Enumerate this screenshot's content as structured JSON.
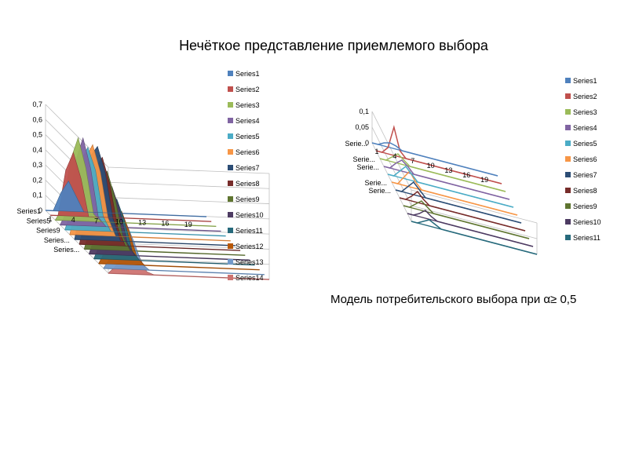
{
  "page": {
    "title": "Нечёткое  представление  приемлемого  выбора",
    "caption": "Модель потребительского выбора при α≥ 0,5"
  },
  "colors": [
    "#4F81BD",
    "#C0504D",
    "#9BBB59",
    "#8064A2",
    "#4BACC6",
    "#F79646",
    "#2C4D75",
    "#772C2A",
    "#5F7530",
    "#4D3B62",
    "#276A7C",
    "#B65708",
    "#729ACA",
    "#CD7371"
  ],
  "chart_data": [
    {
      "type": "area",
      "title": "",
      "x": [
        1,
        2,
        3,
        4,
        5,
        6,
        7,
        8,
        9,
        10,
        11,
        12,
        13,
        14,
        15,
        16,
        17,
        18,
        19,
        20,
        21,
        22
      ],
      "x_tick_labels": [
        "1",
        "4",
        "7",
        "10",
        "13",
        "16",
        "19"
      ],
      "z_labels": [
        "Series1",
        "Series5",
        "Series9",
        "Series...",
        "Series..."
      ],
      "ylim": [
        0,
        0.7
      ],
      "y_ticks": [
        "0",
        "0,1",
        "0,2",
        "0,3",
        "0,4",
        "0,5",
        "0,6",
        "0,7"
      ],
      "legend_position": "right",
      "series": [
        {
          "name": "Series1",
          "values": [
            0,
            0,
            0.12,
            0.2,
            0.1,
            0,
            0,
            0,
            0,
            0,
            0,
            0,
            0,
            0,
            0,
            0,
            0,
            0,
            0,
            0,
            0,
            0
          ]
        },
        {
          "name": "Series2",
          "values": [
            0,
            0,
            0.3,
            0.42,
            0.25,
            0,
            0,
            0,
            0,
            0,
            0,
            0,
            0,
            0,
            0,
            0,
            0,
            0,
            0,
            0,
            0,
            0
          ]
        },
        {
          "name": "Series3",
          "values": [
            0,
            0.08,
            0.4,
            0.55,
            0.35,
            0.05,
            0,
            0,
            0,
            0,
            0,
            0,
            0,
            0,
            0,
            0,
            0,
            0,
            0,
            0,
            0,
            0
          ]
        },
        {
          "name": "Series4",
          "values": [
            0,
            0.1,
            0.42,
            0.58,
            0.38,
            0.06,
            0,
            0,
            0,
            0,
            0,
            0,
            0,
            0,
            0,
            0,
            0,
            0,
            0,
            0,
            0,
            0
          ]
        },
        {
          "name": "Series5",
          "values": [
            0,
            0.15,
            0.45,
            0.55,
            0.4,
            0.1,
            0,
            0,
            0,
            0,
            0,
            0,
            0,
            0,
            0,
            0,
            0,
            0,
            0,
            0,
            0,
            0
          ]
        },
        {
          "name": "Series6",
          "values": [
            0,
            0.2,
            0.5,
            0.6,
            0.42,
            0.12,
            0,
            0,
            0,
            0,
            0,
            0,
            0,
            0,
            0,
            0,
            0,
            0,
            0,
            0,
            0,
            0
          ]
        },
        {
          "name": "Series7",
          "values": [
            0,
            0.25,
            0.55,
            0.62,
            0.45,
            0.15,
            0,
            0,
            0,
            0,
            0,
            0,
            0,
            0,
            0,
            0,
            0,
            0,
            0,
            0,
            0,
            0
          ]
        },
        {
          "name": "Series8",
          "values": [
            0,
            0.22,
            0.5,
            0.58,
            0.4,
            0.12,
            0,
            0,
            0,
            0,
            0,
            0,
            0,
            0,
            0,
            0,
            0,
            0,
            0,
            0,
            0,
            0
          ]
        },
        {
          "name": "Series9",
          "values": [
            0,
            0.18,
            0.45,
            0.52,
            0.35,
            0.1,
            0,
            0,
            0,
            0,
            0,
            0,
            0,
            0,
            0,
            0,
            0,
            0,
            0,
            0,
            0,
            0
          ]
        },
        {
          "name": "Series10",
          "values": [
            0,
            0.15,
            0.4,
            0.45,
            0.3,
            0.08,
            0,
            0,
            0,
            0,
            0,
            0,
            0,
            0,
            0,
            0,
            0,
            0,
            0,
            0,
            0,
            0
          ]
        },
        {
          "name": "Series11",
          "values": [
            0,
            0.12,
            0.35,
            0.4,
            0.26,
            0.06,
            0,
            0,
            0,
            0,
            0,
            0,
            0,
            0,
            0,
            0,
            0,
            0,
            0,
            0,
            0,
            0
          ]
        },
        {
          "name": "Series12",
          "values": [
            0,
            0.1,
            0.3,
            0.35,
            0.22,
            0.05,
            0,
            0,
            0,
            0,
            0,
            0,
            0,
            0,
            0,
            0,
            0,
            0,
            0,
            0,
            0,
            0
          ]
        },
        {
          "name": "Series13",
          "values": [
            0,
            0.08,
            0.25,
            0.3,
            0.18,
            0.04,
            0,
            0,
            0,
            0,
            0,
            0,
            0,
            0,
            0,
            0,
            0,
            0,
            0,
            0,
            0,
            0
          ]
        },
        {
          "name": "Series14",
          "values": [
            0,
            0.05,
            0.18,
            0.22,
            0.12,
            0.02,
            0,
            0,
            0,
            0,
            0,
            0,
            0,
            0,
            0,
            0,
            0,
            0,
            0,
            0,
            0,
            0
          ]
        }
      ]
    },
    {
      "type": "line",
      "title": "",
      "x": [
        1,
        2,
        3,
        4,
        5,
        6,
        7,
        8,
        9,
        10,
        11,
        12,
        13,
        14,
        15,
        16,
        17,
        18,
        19,
        20,
        21,
        22
      ],
      "x_tick_labels": [
        "1",
        "4",
        "7",
        "10",
        "13",
        "16",
        "19"
      ],
      "z_labels": [
        "Serie...",
        "Serie...",
        "Serie...",
        "Serie...",
        "Serie..."
      ],
      "ylim": [
        0,
        0.1
      ],
      "y_ticks": [
        "0",
        "0,05",
        "0,1"
      ],
      "legend_position": "right",
      "series": [
        {
          "name": "Series1",
          "values": [
            0,
            0,
            0.01,
            0.015,
            0.01,
            0,
            0,
            0,
            0,
            0,
            0,
            0,
            0,
            0,
            0,
            0,
            0,
            0,
            0,
            0,
            0,
            0
          ]
        },
        {
          "name": "Series2",
          "values": [
            0,
            0,
            0.02,
            0.09,
            0.02,
            0,
            0,
            0,
            0,
            0,
            0,
            0,
            0,
            0,
            0,
            0,
            0,
            0,
            0,
            0,
            0,
            0
          ]
        },
        {
          "name": "Series3",
          "values": [
            0,
            0,
            0.015,
            0.03,
            0.015,
            0,
            0,
            0,
            0,
            0,
            0,
            0,
            0,
            0,
            0,
            0,
            0,
            0,
            0,
            0,
            0,
            0
          ]
        },
        {
          "name": "Series4",
          "values": [
            0,
            0,
            0.02,
            0.035,
            0.02,
            0,
            0,
            0,
            0,
            0,
            0,
            0,
            0,
            0,
            0,
            0,
            0,
            0,
            0,
            0,
            0,
            0
          ]
        },
        {
          "name": "Series5",
          "values": [
            0,
            0,
            0.02,
            0.04,
            0.02,
            0,
            0,
            0,
            0,
            0,
            0,
            0,
            0,
            0,
            0,
            0,
            0,
            0,
            0,
            0,
            0,
            0
          ]
        },
        {
          "name": "Series6",
          "values": [
            0,
            0,
            0.025,
            0.05,
            0.02,
            0,
            0,
            0,
            0,
            0,
            0,
            0,
            0,
            0,
            0,
            0,
            0,
            0,
            0,
            0,
            0,
            0
          ]
        },
        {
          "name": "Series7",
          "values": [
            0,
            0,
            0.02,
            0.04,
            0.02,
            0,
            0,
            0,
            0,
            0,
            0,
            0,
            0,
            0,
            0,
            0,
            0,
            0,
            0,
            0,
            0,
            0
          ]
        },
        {
          "name": "Series8",
          "values": [
            0,
            0,
            0.015,
            0.035,
            0.015,
            0,
            0,
            0,
            0,
            0,
            0,
            0,
            0,
            0,
            0,
            0,
            0,
            0,
            0,
            0,
            0,
            0
          ]
        },
        {
          "name": "Series9",
          "values": [
            0,
            0,
            0.015,
            0.03,
            0.015,
            0,
            0,
            0,
            0,
            0,
            0,
            0,
            0,
            0,
            0,
            0,
            0,
            0,
            0,
            0,
            0,
            0
          ]
        },
        {
          "name": "Series10",
          "values": [
            0,
            0,
            0.01,
            0.025,
            0.01,
            0,
            0,
            0,
            0,
            0,
            0,
            0,
            0,
            0,
            0,
            0,
            0,
            0,
            0,
            0,
            0,
            0
          ]
        },
        {
          "name": "Series11",
          "values": [
            0,
            0,
            0.01,
            0.02,
            0.01,
            0,
            0,
            0,
            0,
            0,
            0,
            0,
            0,
            0,
            0,
            0,
            0,
            0,
            0,
            0,
            0,
            0
          ]
        }
      ]
    }
  ]
}
